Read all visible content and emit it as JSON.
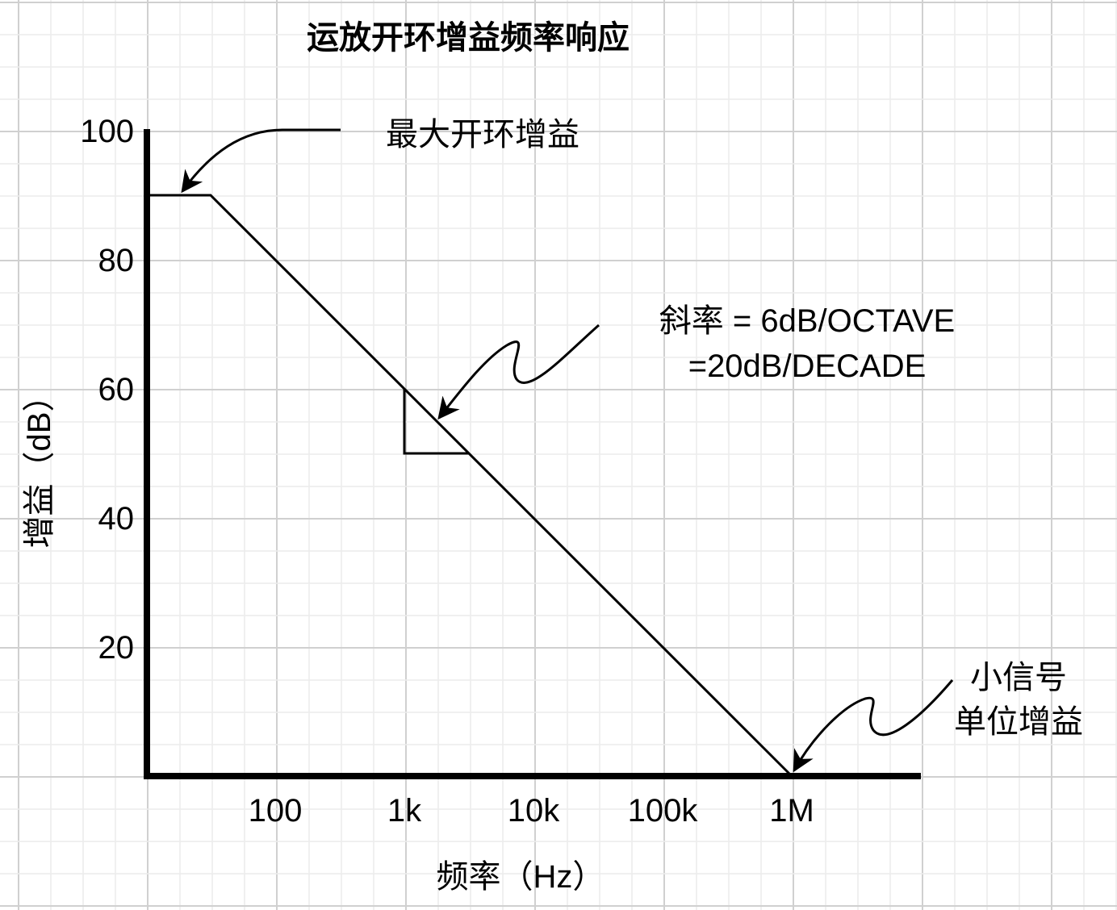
{
  "chart_data": {
    "type": "line",
    "title": "运放开环增益频率响应",
    "xlabel": "频率（Hz）",
    "ylabel": "增益（dB）",
    "x_scale": "log",
    "x_ticks": [
      "100",
      "1k",
      "10k",
      "100k",
      "1M"
    ],
    "x_tick_values": [
      100,
      1000,
      10000,
      100000,
      1000000
    ],
    "y_ticks": [
      "20",
      "40",
      "60",
      "80",
      "100"
    ],
    "y_tick_values": [
      20,
      40,
      60,
      80,
      100
    ],
    "ylim": [
      0,
      100
    ],
    "xlim": [
      10,
      60000000
    ],
    "grid": true,
    "series": [
      {
        "x": [
          10,
          31.6,
          1000000
        ],
        "y": [
          90,
          90,
          0
        ]
      }
    ],
    "slope_triangle": {
      "x": [
        1000,
        1000,
        3162
      ],
      "y": [
        60,
        50,
        50
      ]
    },
    "annotations": {
      "max_gain": "最大开环增益",
      "slope_line1": "斜率 = 6dB/OCTAVE",
      "slope_line2": "=20dB/DECADE",
      "unity_line1": "小信号",
      "unity_line2": "单位增益"
    },
    "colors": {
      "line": "#000000",
      "grid_major": "#d0d0d0",
      "grid_minor": "#ececec"
    }
  }
}
